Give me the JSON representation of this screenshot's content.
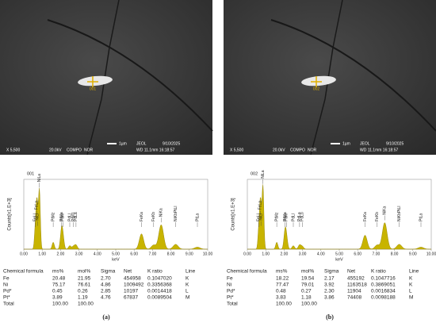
{
  "panels": [
    {
      "label": "(a)",
      "point": "001",
      "sem": {
        "mag": "X 5,500",
        "kv": "20.0kV",
        "mode": "COMPO",
        "nor": "NOR",
        "scale": "1µm",
        "maker": "JEOL",
        "date": "9/10/2025",
        "wd": "WD 11.1mm 16:18:57"
      },
      "spectrum": {
        "ylabel": "Counts[x1.E+3]",
        "xlabel": "keV",
        "xlim": [
          0,
          10
        ],
        "ylim": [
          0,
          10
        ],
        "xticks": [
          {
            "value": 0,
            "label": "0.00"
          },
          {
            "value": 1,
            "label": "1.00"
          },
          {
            "value": 2,
            "label": "2.00"
          },
          {
            "value": 3,
            "label": "3.00"
          },
          {
            "value": 4,
            "label": "4.00"
          },
          {
            "value": 5,
            "label": "5.00"
          },
          {
            "value": 6,
            "label": "6.00"
          },
          {
            "value": 7,
            "label": "7.00"
          },
          {
            "value": 8,
            "label": "8.00"
          },
          {
            "value": 9,
            "label": "9.00"
          },
          {
            "value": 10,
            "label": "10.00"
          }
        ],
        "peaks": [
          {
            "label": "FeLl",
            "kev": 0.62,
            "height": 2.5
          },
          {
            "label": "FeLa",
            "kev": 0.7,
            "height": 4.5
          },
          {
            "label": "NiLl",
            "kev": 0.74,
            "height": 3
          },
          {
            "label": "NiLa",
            "kev": 0.85,
            "height": 8.5
          },
          {
            "label": "PtMz",
            "kev": 1.6,
            "height": 1
          },
          {
            "label": "PtMa",
            "kev": 2.05,
            "height": 2.5
          },
          {
            "label": "PtMr",
            "kev": 2.13,
            "height": 1.5
          },
          {
            "label": "PdLl",
            "kev": 2.5,
            "height": 0.5
          },
          {
            "label": "PdLa",
            "kev": 2.84,
            "height": 0.6
          },
          {
            "label": "PtM1",
            "kev": 2.7,
            "height": 0.4
          },
          {
            "label": "FeKa",
            "kev": 6.4,
            "height": 2.2
          },
          {
            "label": "FeKb",
            "kev": 7.06,
            "height": 0.6
          },
          {
            "label": "NiKa",
            "kev": 7.47,
            "height": 3.5
          },
          {
            "label": "NiKbPtLl",
            "kev": 8.26,
            "height": 0.7
          },
          {
            "label": "PtLa",
            "kev": 9.44,
            "height": 0.3
          }
        ]
      },
      "table": {
        "header": [
          "Chemical formula",
          "ms%",
          "mol%",
          "Sigma",
          "Net",
          "K ratio",
          "Line"
        ],
        "rows": [
          [
            "Fe",
            "20.48",
            "21.95",
            "2.70",
            "454958",
            "0.1047020",
            "K"
          ],
          [
            "Ni",
            "75.17",
            "76.61",
            "4.86",
            "1009492",
            "0.3356368",
            "K"
          ],
          [
            "Pd*",
            "0.45",
            "0.26",
            "2.85",
            "10197",
            "0.0014418",
            "L"
          ],
          [
            "Pt*",
            "3.89",
            "1.19",
            "4.76",
            "67837",
            "0.0089504",
            "M"
          ],
          [
            "Total",
            "100.00",
            "100.00"
          ]
        ]
      }
    },
    {
      "label": "(b)",
      "point": "002",
      "sem": {
        "mag": "X 5,500",
        "kv": "20.0kV",
        "mode": "COMPO",
        "nor": "NOR",
        "scale": "1µm",
        "maker": "JEOL",
        "date": "9/10/2025",
        "wd": "WD 11.1mm 16:18:57"
      },
      "spectrum": {
        "ylabel": "Counts[x1.E+3]",
        "xlabel": "keV",
        "xlim": [
          0,
          10
        ],
        "ylim": [
          0,
          10
        ],
        "xticks": [
          {
            "value": 0,
            "label": "0.00"
          },
          {
            "value": 1,
            "label": "1.00"
          },
          {
            "value": 2,
            "label": "2.00"
          },
          {
            "value": 3,
            "label": "3.00"
          },
          {
            "value": 4,
            "label": "4.00"
          },
          {
            "value": 5,
            "label": "5.00"
          },
          {
            "value": 6,
            "label": "6.00"
          },
          {
            "value": 7,
            "label": "7.00"
          },
          {
            "value": 8,
            "label": "8.00"
          },
          {
            "value": 9,
            "label": "9.00"
          },
          {
            "value": 10,
            "label": "10.00"
          }
        ],
        "peaks": [
          {
            "label": "FeLl",
            "kev": 0.62,
            "height": 2.5
          },
          {
            "label": "FeLa",
            "kev": 0.7,
            "height": 4.5
          },
          {
            "label": "NiLl",
            "kev": 0.74,
            "height": 3
          },
          {
            "label": "NiLa",
            "kev": 0.85,
            "height": 9
          },
          {
            "label": "PtMz",
            "kev": 1.6,
            "height": 1
          },
          {
            "label": "PtMa",
            "kev": 2.05,
            "height": 2.4
          },
          {
            "label": "PtMr",
            "kev": 2.13,
            "height": 1.4
          },
          {
            "label": "PdLl",
            "kev": 2.5,
            "height": 0.5
          },
          {
            "label": "PdLb",
            "kev": 2.99,
            "height": 0.4
          },
          {
            "label": "PdLa",
            "kev": 2.84,
            "height": 0.6
          },
          {
            "label": "FeKa",
            "kev": 6.4,
            "height": 2
          },
          {
            "label": "FeKb",
            "kev": 7.06,
            "height": 0.6
          },
          {
            "label": "NiKa",
            "kev": 7.47,
            "height": 3.8
          },
          {
            "label": "NiKbPtLl",
            "kev": 8.26,
            "height": 0.7
          },
          {
            "label": "PtLa",
            "kev": 9.44,
            "height": 0.3
          }
        ]
      },
      "table": {
        "header": [
          "Chemical formula",
          "ms%",
          "mol%",
          "Sigma",
          "Net",
          "K ratio",
          "Line"
        ],
        "rows": [
          [
            "Fe",
            "18.22",
            "19.54",
            "2.17",
            "455192",
            "0.1047716",
            "K"
          ],
          [
            "Ni",
            "77.47",
            "79.01",
            "3.92",
            "1163518",
            "0.3869051",
            "K"
          ],
          [
            "Pd*",
            "0.48",
            "0.27",
            "2.30",
            "11904",
            "0.0016834",
            "L"
          ],
          [
            "Pt*",
            "3.83",
            "1.18",
            "3.86",
            "74408",
            "0.0098188",
            "M"
          ],
          [
            "Total",
            "100.00",
            "100.00"
          ]
        ]
      }
    }
  ]
}
